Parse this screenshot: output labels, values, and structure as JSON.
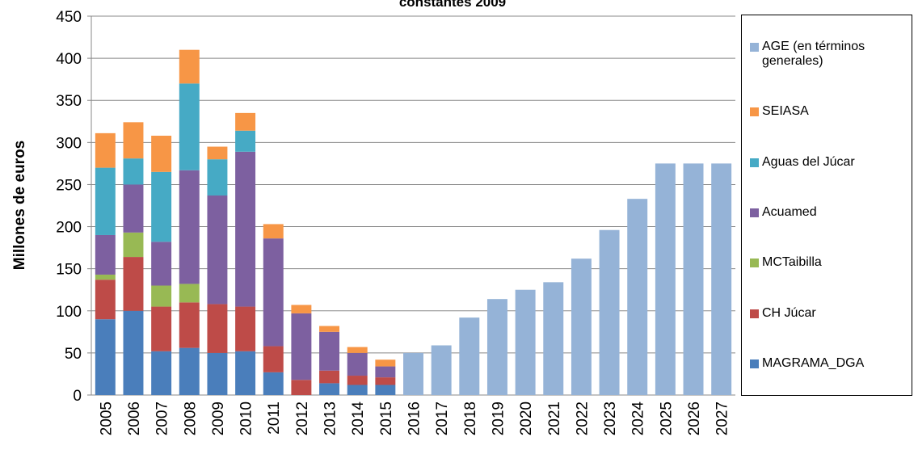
{
  "chart_data": {
    "type": "stacked_bar",
    "title": "constantes 2009",
    "y_label": "Millones de euros",
    "categories": [
      "2005",
      "2006",
      "2007",
      "2008",
      "2009",
      "2010",
      "2011",
      "2012",
      "2013",
      "2014",
      "2015",
      "2016",
      "2017",
      "2018",
      "2019",
      "2020",
      "2021",
      "2022",
      "2023",
      "2024",
      "2025",
      "2026",
      "2027"
    ],
    "series": [
      {
        "name": "MAGRAMA_DGA",
        "color": "#4a7ebb",
        "values": [
          90,
          100,
          52,
          56,
          50,
          52,
          27,
          null,
          14,
          12,
          12,
          null,
          null,
          null,
          null,
          null,
          null,
          null,
          null,
          null,
          null,
          null,
          null
        ]
      },
      {
        "name": "CH Júcar",
        "color": "#be4b48",
        "values": [
          47,
          64,
          53,
          54,
          58,
          53,
          31,
          18,
          15,
          11,
          9,
          null,
          null,
          null,
          null,
          null,
          null,
          null,
          null,
          null,
          null,
          null,
          null
        ]
      },
      {
        "name": "MCTaibilla",
        "color": "#98b954",
        "values": [
          6,
          29,
          25,
          22,
          null,
          null,
          null,
          null,
          null,
          null,
          null,
          null,
          null,
          null,
          null,
          null,
          null,
          null,
          null,
          null,
          null,
          null,
          null
        ]
      },
      {
        "name": "Acuamed",
        "color": "#7d60a0",
        "values": [
          47,
          57,
          52,
          135,
          129,
          184,
          128,
          79,
          46,
          27,
          13,
          null,
          null,
          null,
          null,
          null,
          null,
          null,
          null,
          null,
          null,
          null,
          null
        ]
      },
      {
        "name": "Aguas del Júcar",
        "color": "#46aac5",
        "values": [
          80,
          31,
          83,
          103,
          43,
          25,
          null,
          null,
          null,
          null,
          null,
          null,
          null,
          null,
          null,
          null,
          null,
          null,
          null,
          null,
          null,
          null,
          null
        ]
      },
      {
        "name": "SEIASA",
        "color": "#f79646",
        "values": [
          41,
          43,
          43,
          40,
          15,
          21,
          17,
          10,
          7,
          7,
          8,
          null,
          null,
          null,
          null,
          null,
          null,
          null,
          null,
          null,
          null,
          null,
          null
        ]
      },
      {
        "name": "AGE (en términos generales)",
        "color": "#95b3d7",
        "values": [
          null,
          null,
          null,
          null,
          null,
          null,
          null,
          null,
          null,
          null,
          null,
          50,
          59,
          92,
          114,
          125,
          134,
          162,
          196,
          233,
          275,
          275,
          275
        ]
      }
    ],
    "ylim": [
      0,
      450
    ],
    "yticks": [
      0,
      50,
      100,
      150,
      200,
      250,
      300,
      350,
      400,
      450
    ],
    "grid": true
  }
}
